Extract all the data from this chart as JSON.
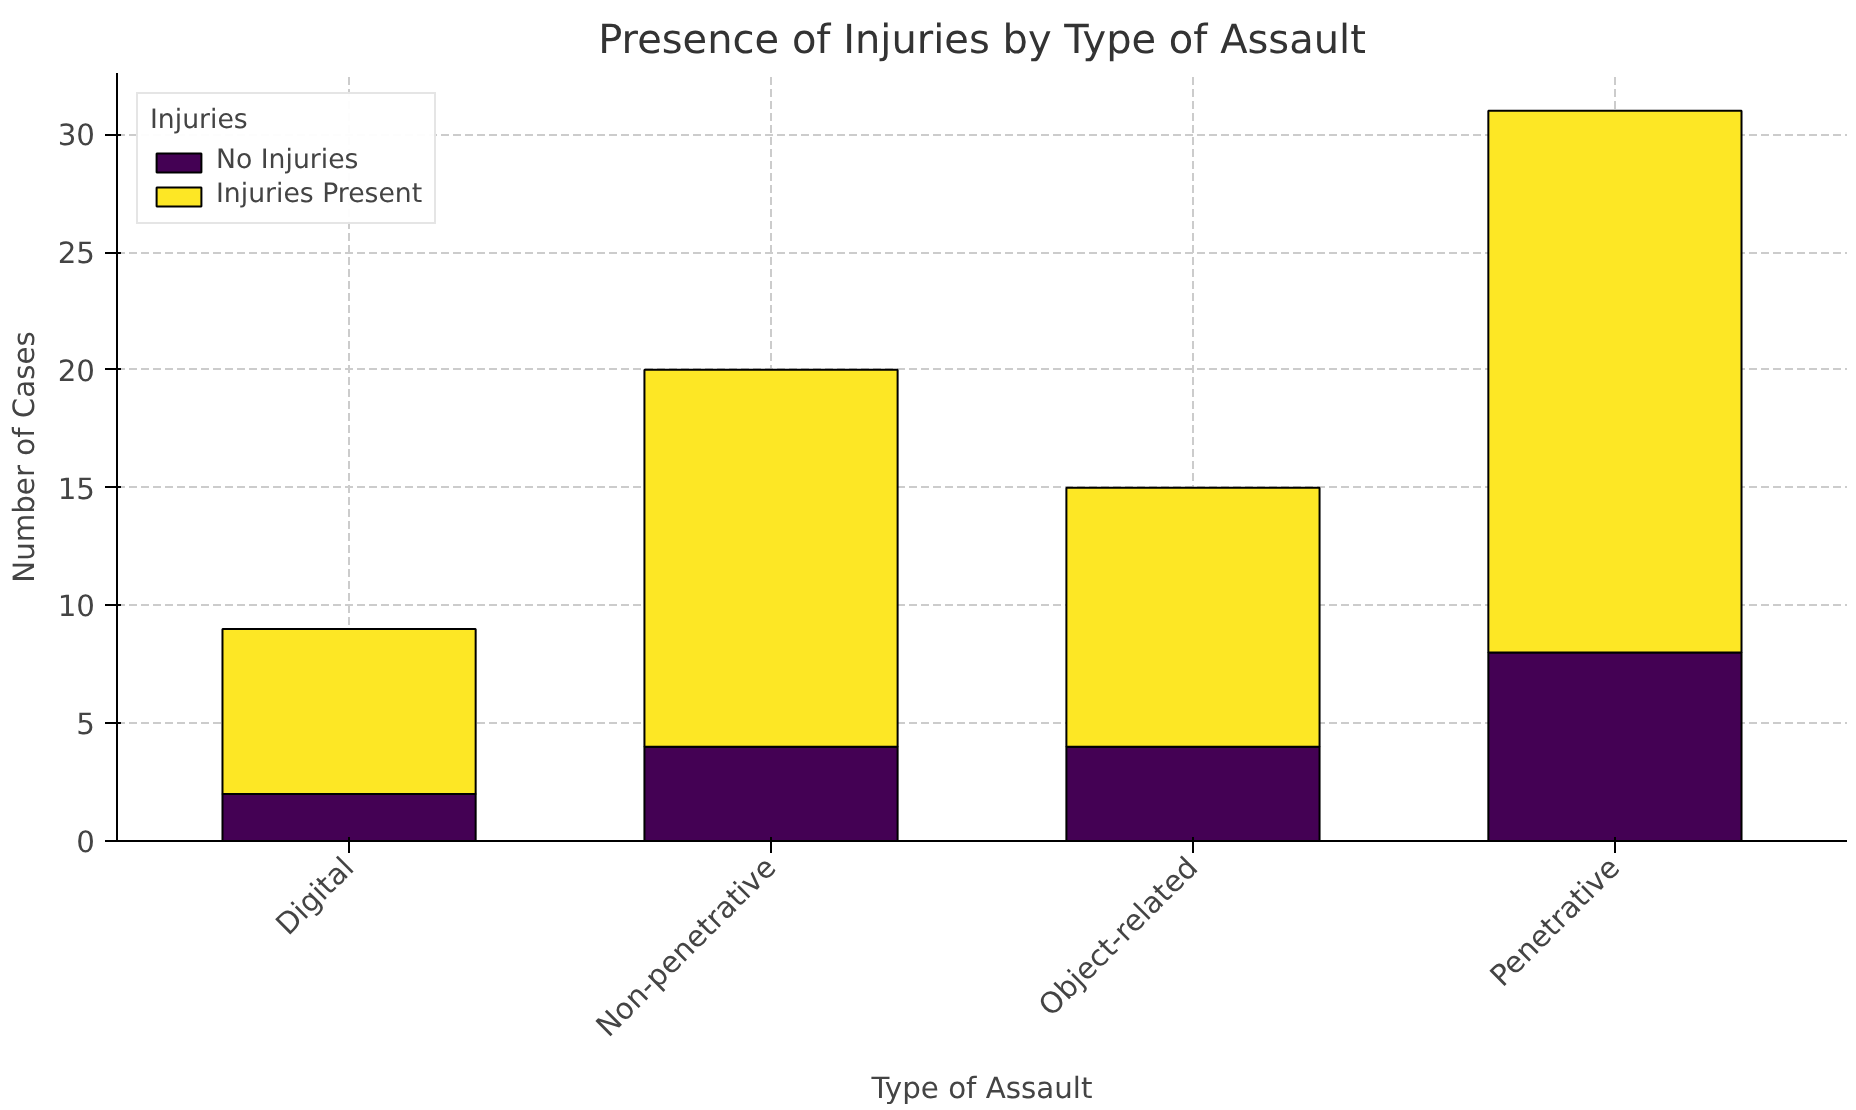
{
  "chart_data": {
    "type": "bar",
    "title": "Presence of Injuries by Type of Assault",
    "xlabel": "Type of Assault",
    "ylabel": "Number of Cases",
    "legend_title": "Injuries",
    "categories": [
      "Digital",
      "Non-penetrative",
      "Object-related",
      "Penetrative"
    ],
    "stacked": true,
    "series": [
      {
        "name": "No Injuries",
        "color": "#440154",
        "values": [
          2,
          4,
          4,
          8
        ]
      },
      {
        "name": "Injuries Present",
        "color": "#fde725",
        "values": [
          7,
          16,
          11,
          23
        ]
      }
    ],
    "ylim": [
      0,
      32.6
    ],
    "yticks": [
      0,
      5,
      10,
      15,
      20,
      25,
      30
    ],
    "grid": true,
    "legend": "top left"
  }
}
